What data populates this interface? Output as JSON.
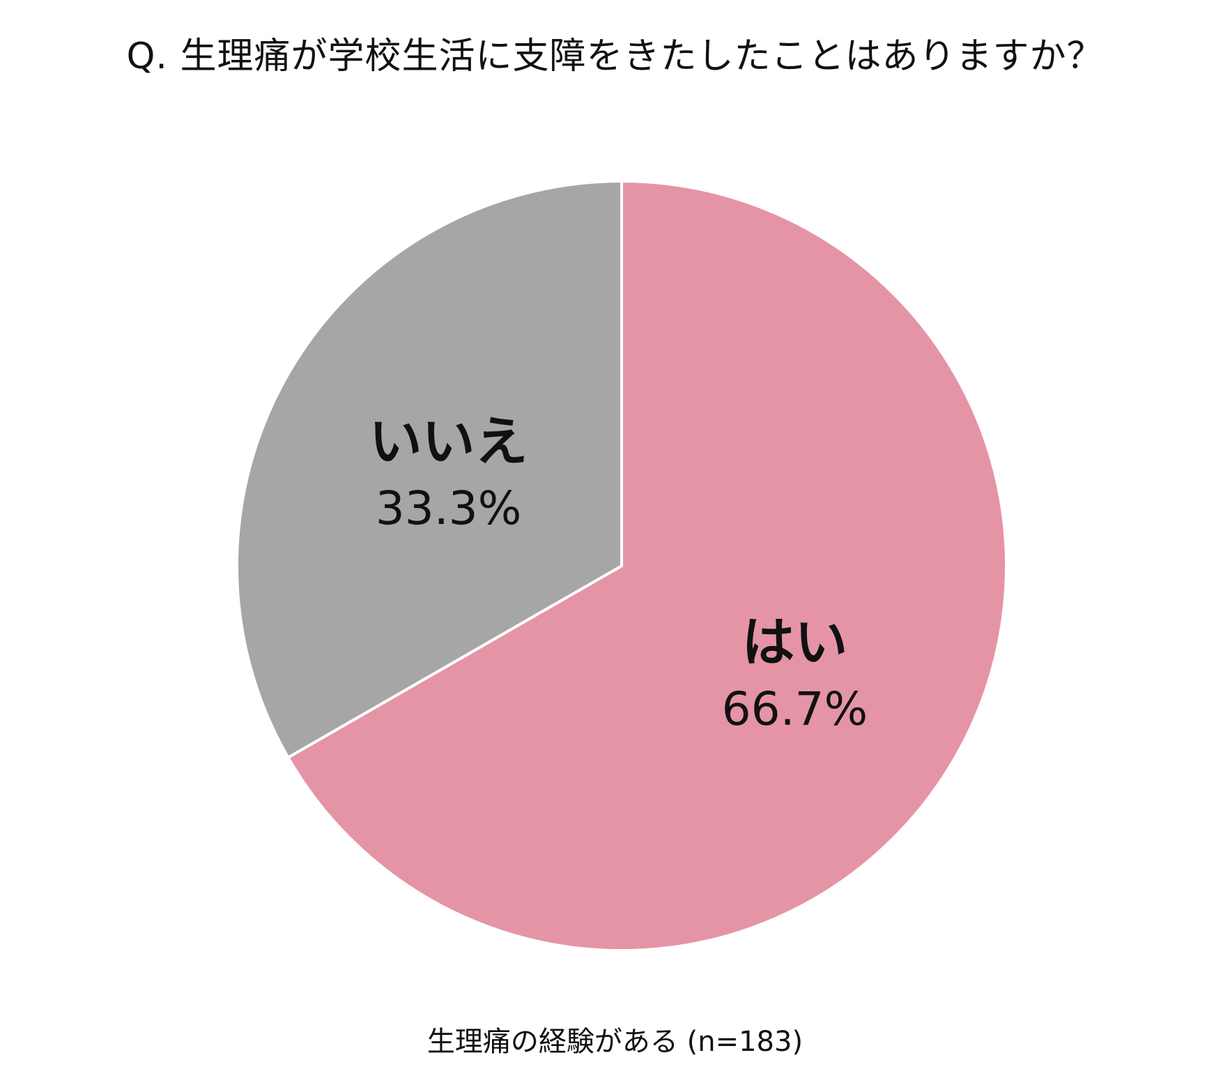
{
  "chart_data": {
    "type": "pie",
    "title": "Q. 生理痛が学校生活に支障をきたしたことはありますか？",
    "caption": "生理痛の経験がある (n=183)",
    "start_angle_deg": 0,
    "direction": "clockwise",
    "slices": [
      {
        "label": "はい",
        "value": 66.7,
        "value_label": "66.7%",
        "color": "#e594a6"
      },
      {
        "label": "いいえ",
        "value": 33.3,
        "value_label": "33.3%",
        "color": "#a6a6a6"
      }
    ]
  }
}
